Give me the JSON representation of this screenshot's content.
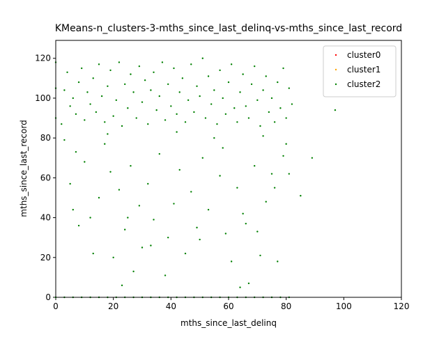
{
  "chart_data": {
    "type": "scatter",
    "title": "KMeans-n_clusters-3-mths_since_last_delinq-vs-mths_since_last_record",
    "x_label": "mths_since_last_delinq",
    "y_label": "mths_since_last_record",
    "xlim": [
      0,
      120
    ],
    "ylim": [
      0,
      129
    ],
    "xticks": [
      0,
      20,
      40,
      60,
      80,
      100,
      120
    ],
    "yticks": [
      0,
      20,
      40,
      60,
      80,
      100,
      120
    ],
    "legend": "upper right",
    "series": [
      {
        "name": "cluster0",
        "color": "#ff0000",
        "x": [],
        "values": []
      },
      {
        "name": "cluster1",
        "color": "#ffa500",
        "x": [],
        "values": []
      },
      {
        "name": "cluster2",
        "color": "#008000",
        "x": [
          0,
          3,
          6,
          9,
          12,
          15,
          18,
          21,
          24,
          27,
          30,
          33,
          36,
          39,
          42,
          45,
          48,
          51,
          54,
          57,
          60,
          63,
          66,
          69,
          72,
          75,
          78,
          81,
          0,
          0,
          0,
          2,
          3,
          4,
          5,
          6,
          7,
          8,
          9,
          10,
          11,
          12,
          13,
          14,
          15,
          16,
          17,
          18,
          19,
          20,
          21,
          22,
          23,
          24,
          25,
          26,
          27,
          28,
          29,
          30,
          31,
          32,
          33,
          34,
          35,
          36,
          37,
          38,
          39,
          40,
          41,
          42,
          43,
          44,
          45,
          46,
          47,
          48,
          49,
          50,
          51,
          52,
          53,
          54,
          55,
          56,
          57,
          58,
          59,
          60,
          61,
          62,
          63,
          64,
          65,
          66,
          67,
          68,
          69,
          70,
          71,
          72,
          73,
          74,
          75,
          76,
          77,
          78,
          79,
          80,
          81,
          82,
          97,
          89,
          85,
          7,
          10,
          5,
          12,
          13,
          8,
          15,
          17,
          19,
          20,
          22,
          23,
          24,
          26,
          27,
          29,
          30,
          32,
          34,
          36,
          38,
          39,
          41,
          43,
          45,
          47,
          49,
          51,
          53,
          55,
          57,
          59,
          61,
          63,
          64,
          66,
          67,
          69,
          71,
          73,
          75,
          77,
          79,
          81,
          3,
          6,
          18,
          25,
          33,
          42,
          50,
          58,
          65,
          70,
          72,
          76,
          80
        ],
        "values": [
          0,
          0,
          0,
          0,
          0,
          0,
          0,
          0,
          0,
          0,
          0,
          0,
          0,
          0,
          0,
          0,
          0,
          0,
          0,
          0,
          0,
          0,
          0,
          0,
          0,
          0,
          0,
          0,
          118,
          105,
          90,
          87,
          104,
          113,
          96,
          100,
          92,
          108,
          115,
          89,
          103,
          97,
          110,
          93,
          117,
          101,
          88,
          106,
          114,
          91,
          99,
          118,
          86,
          107,
          95,
          112,
          103,
          90,
          116,
          98,
          109,
          87,
          104,
          113,
          94,
          101,
          118,
          89,
          107,
          96,
          115,
          92,
          103,
          110,
          88,
          99,
          117,
          93,
          106,
          101,
          120,
          90,
          111,
          97,
          104,
          87,
          114,
          100,
          92,
          108,
          117,
          95,
          88,
          103,
          112,
          96,
          90,
          107,
          116,
          99,
          86,
          104,
          111,
          93,
          100,
          88,
          108,
          95,
          115,
          90,
          105,
          97,
          94,
          70,
          51,
          73,
          68,
          57,
          40,
          22,
          36,
          50,
          77,
          63,
          20,
          54,
          6,
          34,
          66,
          13,
          46,
          25,
          57,
          39,
          72,
          11,
          30,
          47,
          64,
          22,
          53,
          35,
          70,
          44,
          80,
          61,
          32,
          18,
          55,
          5,
          37,
          7,
          66,
          21,
          48,
          62,
          18,
          71,
          62,
          79,
          44,
          82,
          40,
          26,
          83,
          29,
          75,
          42,
          33,
          81,
          55,
          77
        ]
      }
    ]
  }
}
